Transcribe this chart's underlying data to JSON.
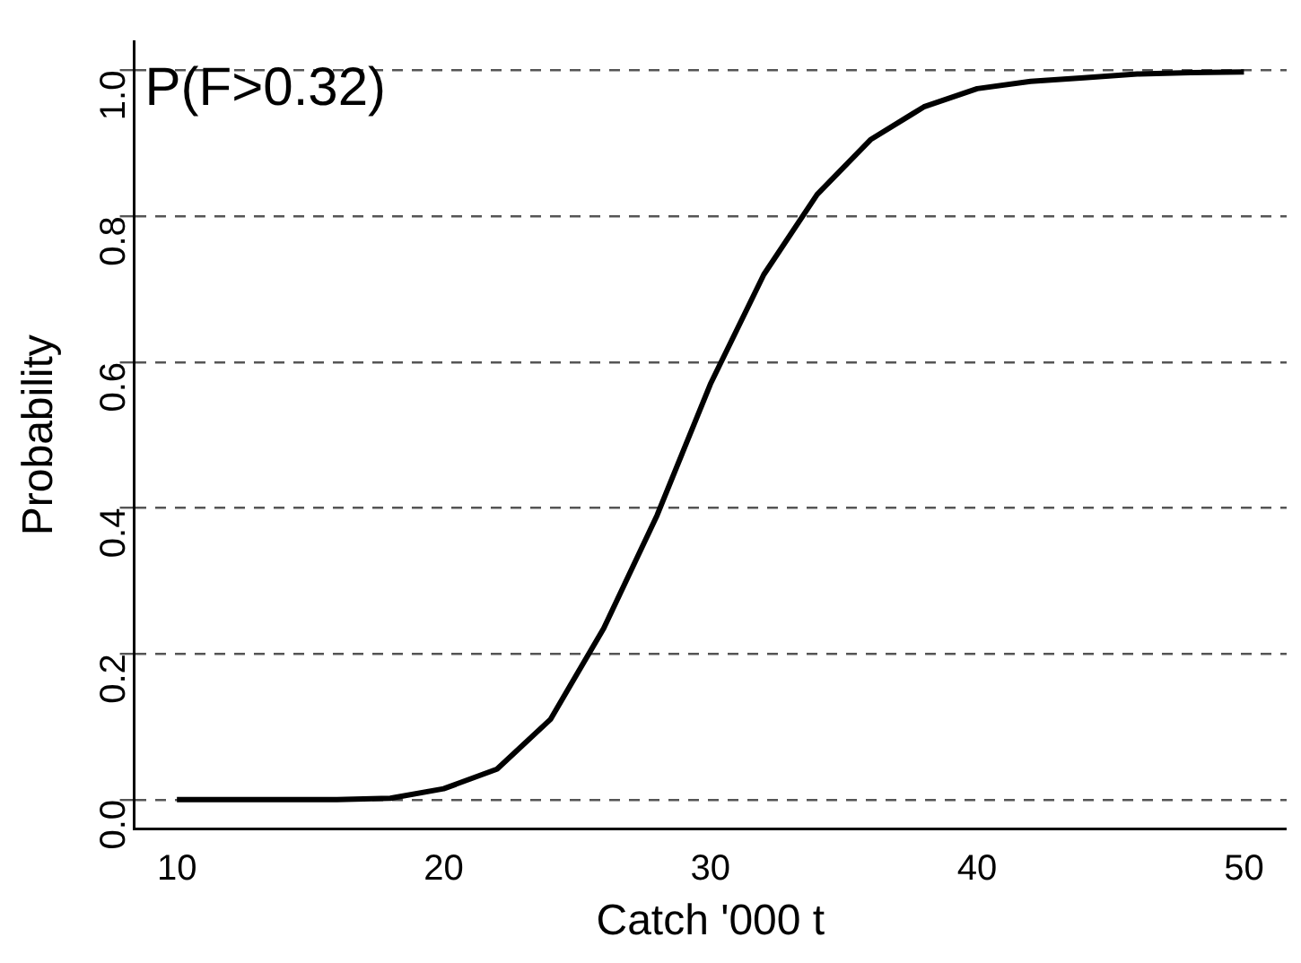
{
  "chart_data": {
    "type": "line",
    "xlabel": "Catch '000 t",
    "ylabel": "Probability",
    "annotations": [
      "P(F>0.32)"
    ],
    "x": [
      10,
      12,
      14,
      16,
      18,
      20,
      22,
      24,
      26,
      28,
      30,
      32,
      34,
      36,
      38,
      40,
      42,
      44,
      46,
      48,
      50
    ],
    "series": [
      {
        "color": "#000000",
        "values": [
          0,
          0,
          0,
          0,
          0.002,
          0.015,
          0.042,
          0.11,
          0.235,
          0.39,
          0.57,
          0.72,
          0.83,
          0.905,
          0.95,
          0.975,
          0.985,
          0.99,
          0.995,
          0.997,
          0.998
        ]
      }
    ],
    "xlim": [
      8.4,
      51.6
    ],
    "xticks": [
      10,
      20,
      30,
      40,
      50
    ],
    "ylim": [
      -0.04,
      1.04
    ],
    "yticks": [
      {
        "value": 0,
        "label": "0.0"
      },
      {
        "value": 0.2,
        "label": "0.2"
      },
      {
        "value": 0.4,
        "label": "0.4"
      },
      {
        "value": 0.6,
        "label": "0.6"
      },
      {
        "value": 0.8,
        "label": "0.8"
      },
      {
        "value": 1,
        "label": "1.0"
      }
    ],
    "grid": "y",
    "marker": "none",
    "line_style": "solid",
    "legend": false
  }
}
